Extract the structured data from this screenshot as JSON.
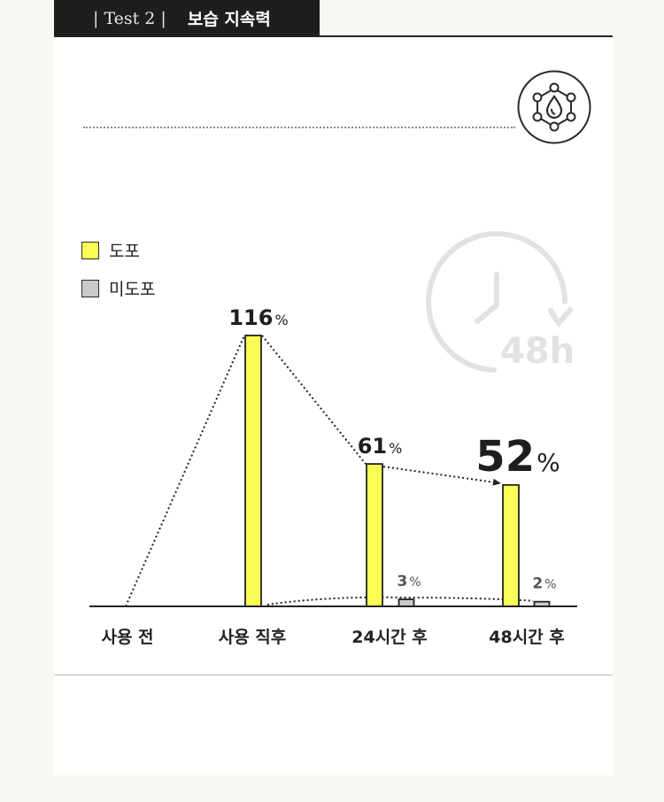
{
  "header": {
    "test_label": "| Test 2 |",
    "title": "보습 지속력"
  },
  "icons": {
    "badge": "hydration-droplet-icon",
    "timer": "clock-48h-icon"
  },
  "colors": {
    "applied": "#f8fc55",
    "not_applied": "#cbc9c7",
    "axis": "#222222",
    "timer": "#e2e2e2"
  },
  "timer": {
    "label": "48h"
  },
  "legend": [
    {
      "label": "도포",
      "color": "#f8fc55"
    },
    {
      "label": "미도포",
      "color": "#cbc9c7"
    }
  ],
  "chart_data": {
    "type": "bar",
    "categories": [
      "사용 전",
      "사용 직후",
      "24시간 후",
      "48시간 후"
    ],
    "series": [
      {
        "name": "도포",
        "values": [
          0,
          116,
          61,
          52
        ],
        "labels": [
          "",
          "116%",
          "61%",
          "52%"
        ]
      },
      {
        "name": "미도포",
        "values": [
          null,
          0,
          3,
          2
        ],
        "labels": [
          "",
          "",
          "3%",
          "2%"
        ]
      }
    ],
    "ylim": [
      0,
      116
    ]
  }
}
